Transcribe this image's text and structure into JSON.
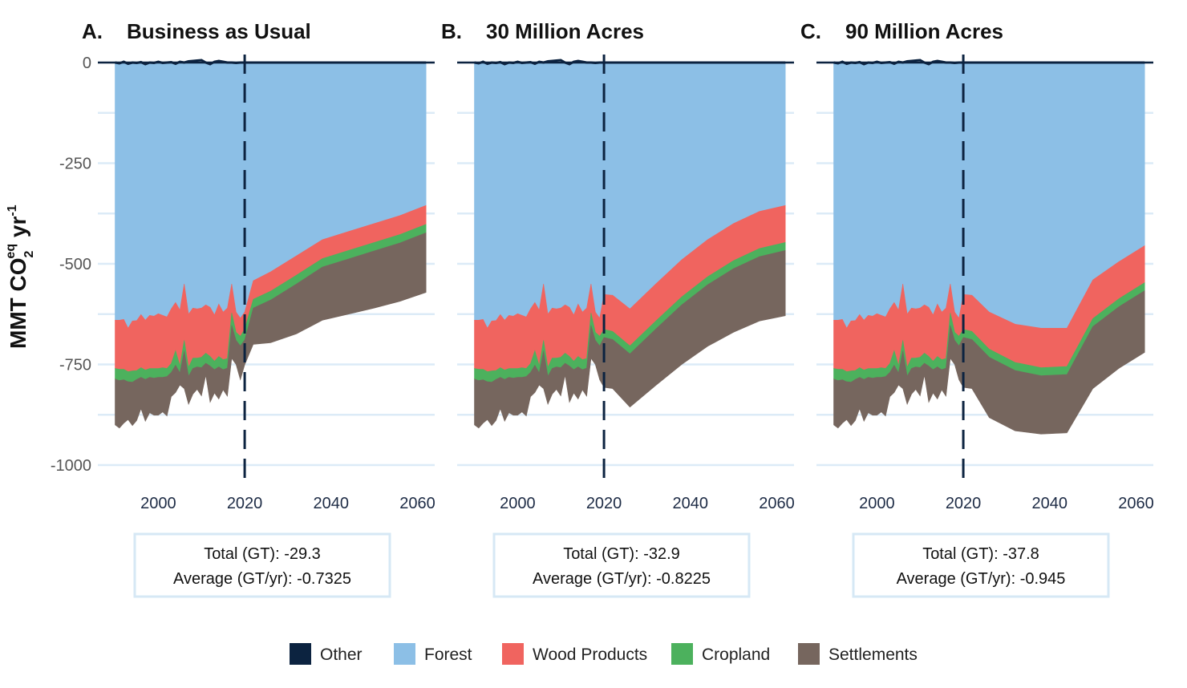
{
  "chart_data": {
    "type": "area",
    "ylabel": {
      "base": "MMT CO",
      "sub": "2",
      "sup": "eq",
      "unit": " yr",
      "unit_sup": "-1"
    },
    "ylim": [
      -1000,
      0
    ],
    "yticks": [
      0,
      -250,
      -500,
      -750,
      -1000
    ],
    "xlim": [
      1986,
      2064
    ],
    "xticks": [
      2000,
      2020,
      2040,
      2060
    ],
    "reference_line_x": 2020,
    "grid": true,
    "legend_position": "bottom",
    "legend": [
      {
        "name": "Other",
        "color": "#0c2340"
      },
      {
        "name": "Forest",
        "color": "#8cbfe6"
      },
      {
        "name": "Wood Products",
        "color": "#f0645f"
      },
      {
        "name": "Cropland",
        "color": "#4cb15d"
      },
      {
        "name": "Settlements",
        "color": "#76665e"
      }
    ],
    "x": [
      1990,
      1991,
      1992,
      1993,
      1994,
      1995,
      1996,
      1997,
      1998,
      1999,
      2000,
      2001,
      2002,
      2003,
      2004,
      2005,
      2006,
      2007,
      2008,
      2009,
      2010,
      2011,
      2012,
      2013,
      2014,
      2015,
      2016,
      2017,
      2018,
      2019,
      2020,
      2022,
      2026,
      2032,
      2038,
      2044,
      2050,
      2056,
      2062
    ],
    "panels": [
      {
        "letter": "A.",
        "title": "Business as Usual",
        "total_label": "Total (GT): -29.3",
        "average_label": "Average (GT/yr): -0.7325",
        "series": [
          {
            "name": "Other",
            "values": [
              0,
              -2,
              2,
              -3,
              0,
              -1,
              1,
              -4,
              0,
              -1,
              2,
              -1,
              0,
              1,
              -3,
              2,
              0,
              3,
              4,
              5,
              6,
              0,
              -4,
              2,
              4,
              2,
              0,
              0,
              -1,
              0,
              0,
              0,
              0,
              0,
              0,
              0,
              0,
              0,
              0
            ]
          },
          {
            "name": "Forest",
            "values": [
              -640,
              -640,
              -638,
              -660,
              -642,
              -641,
              -626,
              -640,
              -628,
              -630,
              -624,
              -628,
              -632,
              -612,
              -596,
              -615,
              -550,
              -625,
              -610,
              -612,
              -610,
              -602,
              -608,
              -627,
              -600,
              -620,
              -610,
              -550,
              -620,
              -635,
              -620,
              -542,
              -520,
              -480,
              -440,
              -420,
              -400,
              -380,
              -355
            ]
          },
          {
            "name": "Wood Products",
            "values": [
              -120,
              -122,
              -124,
              -108,
              -124,
              -124,
              -132,
              -124,
              -132,
              -130,
              -136,
              -130,
              -128,
              -136,
              -120,
              -138,
              -140,
              -132,
              -124,
              -122,
              -122,
              -120,
              -122,
              -115,
              -130,
              -118,
              -125,
              -72,
              -50,
              -45,
              -42,
              -46,
              -48,
              -48,
              -47,
              -47,
              -47,
              -47,
              -47
            ]
          },
          {
            "name": "Cropland",
            "values": [
              -26,
              -28,
              -26,
              -25,
              -28,
              -22,
              -24,
              -23,
              -22,
              -24,
              -22,
              -24,
              -20,
              -22,
              -36,
              -18,
              -26,
              -22,
              -26,
              -22,
              -26,
              -25,
              -24,
              -21,
              -26,
              -25,
              -24,
              -31,
              -20,
              -24,
              -27,
              -22,
              -22,
              -22,
              -21,
              -21,
              -21,
              -21,
              -21
            ]
          },
          {
            "name": "Settlements",
            "values": [
              -114,
              -118,
              -108,
              -94,
              -108,
              -102,
              -78,
              -104,
              -88,
              -92,
              -94,
              -86,
              -98,
              -60,
              -68,
              -30,
              -94,
              -70,
              -64,
              -56,
              -70,
              -30,
              -90,
              -58,
              -80,
              -50,
              -70,
              -82,
              -60,
              -84,
              -62,
              -90,
              -106,
              -124,
              -132,
              -137,
              -142,
              -145,
              -148
            ]
          }
        ]
      },
      {
        "letter": "B.",
        "title": "30 Million Acres",
        "total_label": "Total (GT): -32.9",
        "average_label": "Average (GT/yr): -0.8225",
        "series": [
          {
            "name": "Other",
            "values": [
              0,
              -2,
              2,
              -3,
              0,
              -1,
              1,
              -4,
              0,
              -1,
              2,
              -1,
              0,
              1,
              -3,
              2,
              0,
              3,
              4,
              5,
              6,
              0,
              -4,
              2,
              4,
              2,
              0,
              0,
              -1,
              0,
              0,
              0,
              0,
              0,
              0,
              0,
              0,
              0,
              0
            ]
          },
          {
            "name": "Forest",
            "values": [
              -640,
              -640,
              -638,
              -660,
              -642,
              -641,
              -626,
              -640,
              -628,
              -630,
              -624,
              -628,
              -632,
              -612,
              -596,
              -615,
              -550,
              -625,
              -610,
              -612,
              -610,
              -602,
              -608,
              -627,
              -600,
              -620,
              -610,
              -550,
              -620,
              -635,
              -576,
              -578,
              -612,
              -550,
              -490,
              -440,
              -400,
              -370,
              -355
            ]
          },
          {
            "name": "Wood Products",
            "values": [
              -120,
              -122,
              -124,
              -108,
              -124,
              -124,
              -132,
              -124,
              -132,
              -130,
              -136,
              -130,
              -128,
              -136,
              -120,
              -138,
              -140,
              -132,
              -124,
              -122,
              -122,
              -120,
              -122,
              -115,
              -130,
              -118,
              -125,
              -72,
              -50,
              -45,
              -87,
              -90,
              -92,
              -92,
              -92,
              -92,
              -92,
              -92,
              -92
            ]
          },
          {
            "name": "Cropland",
            "values": [
              -26,
              -28,
              -26,
              -25,
              -28,
              -22,
              -24,
              -23,
              -22,
              -24,
              -22,
              -24,
              -20,
              -22,
              -36,
              -18,
              -26,
              -22,
              -26,
              -22,
              -26,
              -25,
              -24,
              -21,
              -26,
              -25,
              -24,
              -31,
              -20,
              -24,
              -20,
              -20,
              -20,
              -20,
              -20,
              -20,
              -20,
              -20,
              -20
            ]
          },
          {
            "name": "Settlements",
            "values": [
              -114,
              -118,
              -108,
              -94,
              -108,
              -102,
              -78,
              -104,
              -88,
              -92,
              -94,
              -86,
              -98,
              -60,
              -68,
              -30,
              -94,
              -70,
              -64,
              -56,
              -70,
              -30,
              -90,
              -58,
              -80,
              -50,
              -70,
              -82,
              -60,
              -84,
              -124,
              -122,
              -132,
              -140,
              -148,
              -153,
              -158,
              -160,
              -162
            ]
          }
        ]
      },
      {
        "letter": "C.",
        "title": "90 Million Acres",
        "total_label": "Total (GT): -37.8",
        "average_label": "Average (GT/yr): -0.945",
        "series": [
          {
            "name": "Other",
            "values": [
              0,
              -2,
              2,
              -3,
              0,
              -1,
              1,
              -4,
              0,
              -1,
              2,
              -1,
              0,
              1,
              -3,
              2,
              0,
              3,
              4,
              5,
              6,
              0,
              -4,
              2,
              4,
              2,
              0,
              0,
              -1,
              0,
              0,
              0,
              0,
              0,
              0,
              0,
              0,
              0,
              0
            ]
          },
          {
            "name": "Forest",
            "values": [
              -640,
              -640,
              -638,
              -660,
              -642,
              -641,
              -626,
              -640,
              -628,
              -630,
              -624,
              -628,
              -632,
              -612,
              -596,
              -615,
              -550,
              -625,
              -610,
              -612,
              -610,
              -602,
              -608,
              -627,
              -600,
              -620,
              -610,
              -550,
              -620,
              -635,
              -576,
              -578,
              -620,
              -650,
              -660,
              -660,
              -540,
              -495,
              -455
            ]
          },
          {
            "name": "Wood Products",
            "values": [
              -120,
              -122,
              -124,
              -108,
              -124,
              -124,
              -132,
              -124,
              -132,
              -130,
              -136,
              -130,
              -128,
              -136,
              -120,
              -138,
              -140,
              -132,
              -124,
              -122,
              -122,
              -120,
              -122,
              -115,
              -130,
              -118,
              -125,
              -72,
              -50,
              -45,
              -87,
              -90,
              -92,
              -95,
              -98,
              -95,
              -96,
              -92,
              -92
            ]
          },
          {
            "name": "Cropland",
            "values": [
              -26,
              -28,
              -26,
              -25,
              -28,
              -22,
              -24,
              -23,
              -22,
              -24,
              -22,
              -24,
              -20,
              -22,
              -36,
              -18,
              -26,
              -22,
              -26,
              -22,
              -26,
              -25,
              -24,
              -21,
              -26,
              -25,
              -24,
              -31,
              -20,
              -24,
              -20,
              -20,
              -20,
              -20,
              -20,
              -20,
              -20,
              -20,
              -20
            ]
          },
          {
            "name": "Settlements",
            "values": [
              -114,
              -118,
              -108,
              -94,
              -108,
              -102,
              -78,
              -104,
              -88,
              -92,
              -94,
              -86,
              -98,
              -60,
              -68,
              -30,
              -94,
              -70,
              -64,
              -56,
              -70,
              -30,
              -90,
              -58,
              -80,
              -50,
              -70,
              -82,
              -60,
              -84,
              -124,
              -122,
              -150,
              -150,
              -145,
              -145,
              -154,
              -153,
              -153
            ]
          }
        ]
      }
    ]
  }
}
